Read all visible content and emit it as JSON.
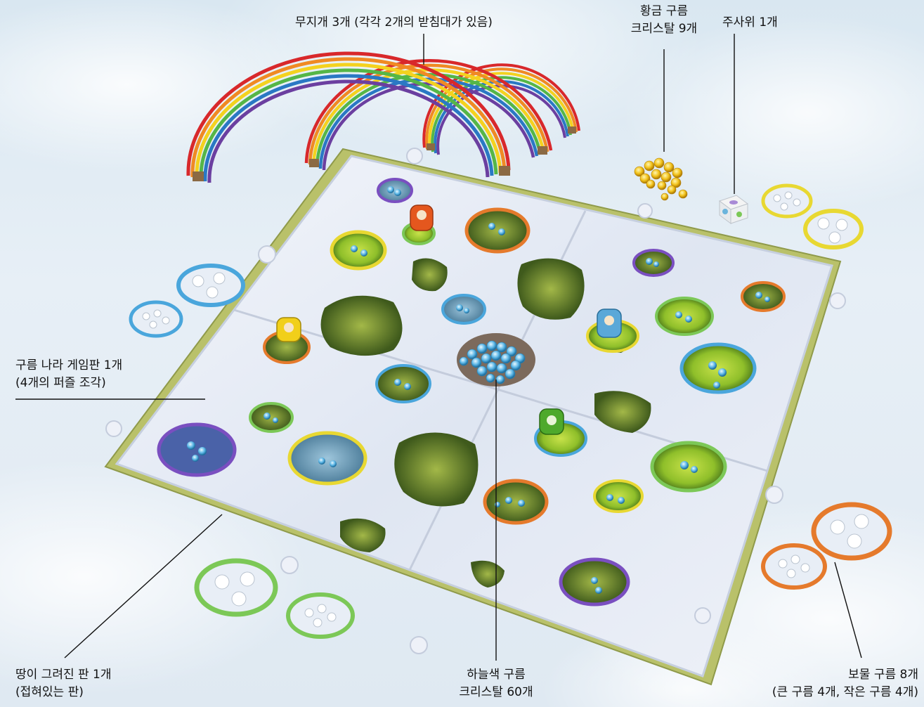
{
  "labels": {
    "rainbow": "무지개 3개 (각각 2개의 받침대가 있음)",
    "gold_crystal": {
      "line1": "황금 구름",
      "line2": "크리스탈 9개"
    },
    "die": "주사위 1개",
    "board": {
      "line1": "구름 나라 게임판 1개",
      "line2": "(4개의 퍼즐 조각)"
    },
    "ground_board": {
      "line1": "땅이 그려진 판 1개",
      "line2": "(접혀있는 판)"
    },
    "sky_crystal": {
      "line1": "하늘색 구름",
      "line2": "크리스탈 60개"
    },
    "treasure_cloud": {
      "line1": "보물 구름 8개",
      "line2": "(큰 구름 4개, 작은 구름 4개)"
    }
  },
  "colors": {
    "rainbow": [
      "#d8282b",
      "#f08a24",
      "#f4d21f",
      "#55b647",
      "#2a78c4",
      "#6b3fa0"
    ],
    "ring_purple": "#7a4fc0",
    "ring_orange": "#e57a2c",
    "ring_yellow": "#e8d832",
    "ring_green": "#7cc857",
    "ring_blue": "#4aa6dc",
    "crystal_blue": "#5bb6e6",
    "crystal_gold": "#f2c21a",
    "pawn_orange": "#e4571e",
    "pawn_yellow": "#f1cf1a",
    "pawn_blue": "#5aa8d8",
    "pawn_green": "#4ea92c"
  },
  "icons": [
    "rainbow-icon",
    "gold-crystal-pile-icon",
    "die-icon",
    "game-board-icon",
    "treasure-cloud-icon",
    "sky-crystal-pile-icon",
    "pawn-icon"
  ]
}
